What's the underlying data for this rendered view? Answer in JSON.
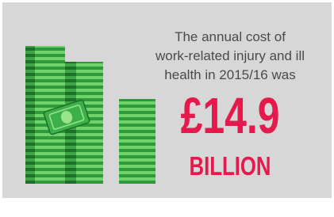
{
  "intro": {
    "lines": [
      "The annual cost of",
      "work-related injury and ill",
      "health in 2015/16 was"
    ]
  },
  "figure": {
    "amount": "£14.9",
    "unit": "BILLION"
  }
}
